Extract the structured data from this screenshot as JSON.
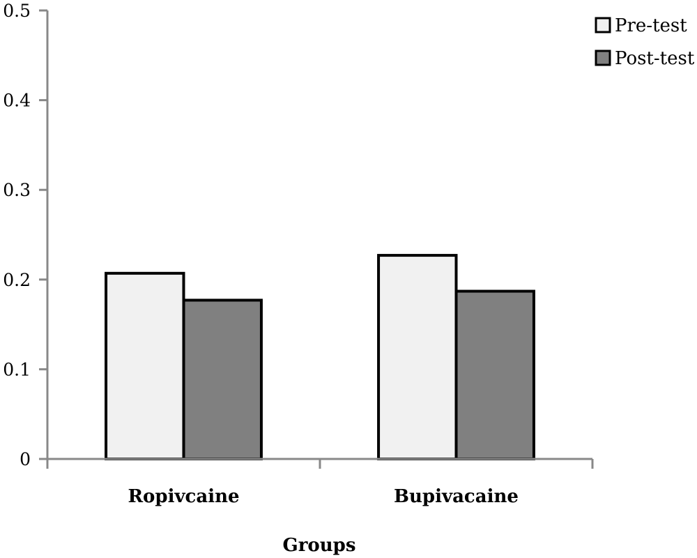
{
  "chart_data": {
    "type": "bar",
    "categories": [
      "Ropivcaine",
      "Bupivacaine"
    ],
    "series": [
      {
        "name": "Pre-test",
        "values": [
          0.207,
          0.227
        ],
        "color": "#f1f1f1"
      },
      {
        "name": "Post-test",
        "values": [
          0.177,
          0.187
        ],
        "color": "#808080"
      }
    ],
    "xlabel": "Groups",
    "ylabel": "",
    "ylim": [
      0,
      0.5
    ],
    "yticks": [
      "0",
      "0.1",
      "0.2",
      "0.3",
      "0.4",
      "0.5"
    ],
    "grid": false,
    "legend_position": "top-right",
    "axis_color": "#888888",
    "bar_outline_color": "#000000"
  }
}
